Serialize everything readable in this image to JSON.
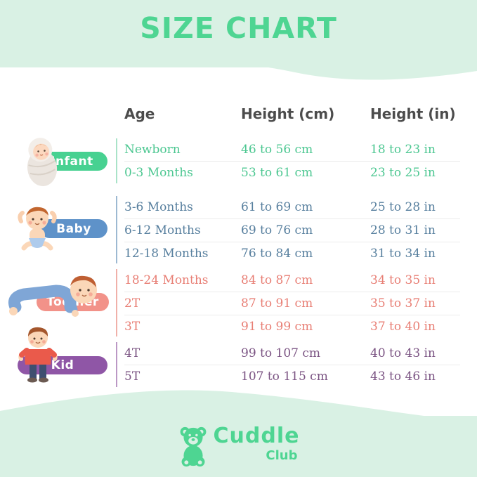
{
  "title": "SIZE CHART",
  "colors": {
    "background_mint": "#d9f1e4",
    "content_white": "#ffffff",
    "title_green": "#4ed592",
    "header_text": "#4c4c4c",
    "row_divider": "#ececec",
    "logo_green": "#4ed592"
  },
  "table": {
    "headers": [
      "Age",
      "Height (cm)",
      "Height (in)"
    ],
    "groups": [
      {
        "label": "Infant",
        "colors": {
          "accent": "#47d191",
          "text": "#4cc791",
          "line": "#a9e3c8"
        },
        "rows": [
          {
            "age": "Newborn",
            "cm": "46 to 56 cm",
            "in": "18 to 23 in"
          },
          {
            "age": "0-3 Months",
            "cm": "53 to 61 cm",
            "in": "23 to 25 in"
          }
        ]
      },
      {
        "label": "Baby",
        "colors": {
          "accent": "#5e92c9",
          "text": "#577f9e",
          "line": "#9db9d2"
        },
        "rows": [
          {
            "age": "3-6 Months",
            "cm": "61 to 69 cm",
            "in": "25 to 28 in"
          },
          {
            "age": "6-12 Months",
            "cm": "69 to 76 cm",
            "in": "28 to 31 in"
          },
          {
            "age": "12-18 Months",
            "cm": "76 to 84 cm",
            "in": "31 to 34 in"
          }
        ]
      },
      {
        "label": "Toddler",
        "colors": {
          "accent": "#f29289",
          "text": "#e87e74",
          "line": "#f0b0a9"
        },
        "rows": [
          {
            "age": "18-24 Months",
            "cm": "84 to 87 cm",
            "in": "34 to 35 in"
          },
          {
            "age": "2T",
            "cm": "87 to 91 cm",
            "in": "35 to 37 in"
          },
          {
            "age": "3T",
            "cm": "91 to 99 cm",
            "in": "37 to 40 in"
          }
        ]
      },
      {
        "label": "Kid",
        "colors": {
          "accent": "#8f56a6",
          "text": "#7b5483",
          "line": "#bb98c5"
        },
        "rows": [
          {
            "age": "4T",
            "cm": "99 to 107 cm",
            "in": "40 to 43 in"
          },
          {
            "age": "5T",
            "cm": "107 to 115 cm",
            "in": "43 to 46 in"
          }
        ]
      }
    ]
  },
  "logo": {
    "brand": "Cuddle",
    "sub": "Club"
  },
  "chart_data": {
    "type": "table",
    "title": "SIZE CHART",
    "columns": [
      "Age",
      "Height (cm)",
      "Height (in)"
    ],
    "rows": [
      [
        "Infant",
        "Newborn",
        "46 to 56 cm",
        "18 to 23 in"
      ],
      [
        "Infant",
        "0-3 Months",
        "53 to 61 cm",
        "23 to 25 in"
      ],
      [
        "Baby",
        "3-6 Months",
        "61 to 69 cm",
        "25 to 28 in"
      ],
      [
        "Baby",
        "6-12 Months",
        "69 to 76 cm",
        "28 to 31 in"
      ],
      [
        "Baby",
        "12-18 Months",
        "76 to 84 cm",
        "31 to 34 in"
      ],
      [
        "Toddler",
        "18-24 Months",
        "84 to 87 cm",
        "34 to 35 in"
      ],
      [
        "Toddler",
        "2T",
        "87 to 91 cm",
        "35 to 37 in"
      ],
      [
        "Toddler",
        "3T",
        "91 to 99 cm",
        "37 to 40 in"
      ],
      [
        "Kid",
        "4T",
        "99 to 107 cm",
        "40 to 43 in"
      ],
      [
        "Kid",
        "5T",
        "107 to 115 cm",
        "43 to 46 in"
      ]
    ]
  }
}
